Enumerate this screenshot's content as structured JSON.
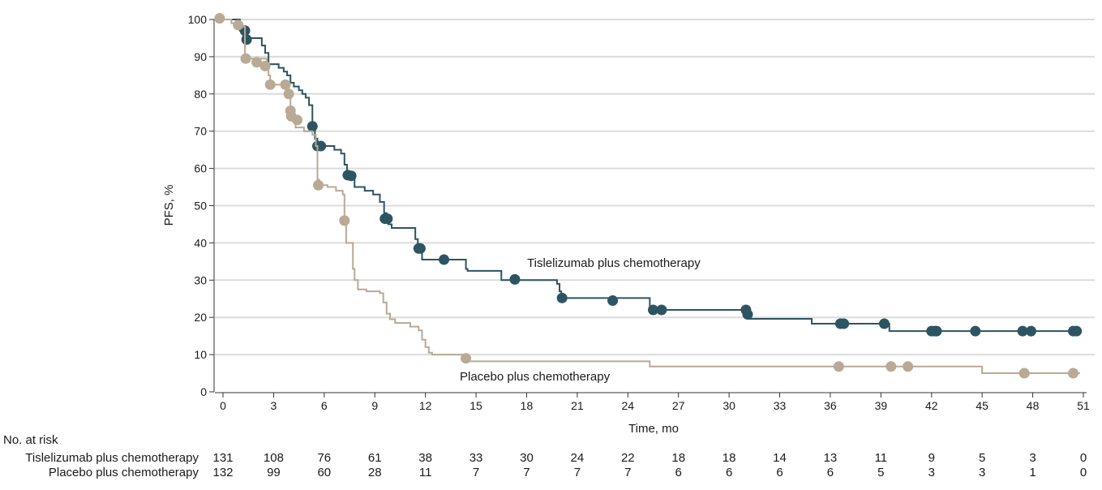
{
  "chart_data": {
    "type": "line",
    "title": "",
    "xlabel": "Time, mo",
    "ylabel": "PFS, %",
    "xlim": [
      0,
      51
    ],
    "ylim": [
      0,
      100
    ],
    "xticks": [
      0,
      3,
      6,
      9,
      12,
      15,
      18,
      21,
      24,
      27,
      30,
      33,
      36,
      39,
      42,
      45,
      48,
      51
    ],
    "yticks": [
      0,
      10,
      20,
      30,
      40,
      50,
      60,
      70,
      80,
      90,
      100
    ],
    "grid": "horizontal",
    "series": [
      {
        "name": "Tislelizumab plus chemotherapy",
        "color": "#2d5463",
        "steps": [
          [
            0,
            100
          ],
          [
            1.0,
            97
          ],
          [
            1.2,
            95
          ],
          [
            2.3,
            93
          ],
          [
            2.5,
            91
          ],
          [
            2.7,
            88
          ],
          [
            3.3,
            87
          ],
          [
            3.6,
            86
          ],
          [
            3.8,
            85
          ],
          [
            4.0,
            83
          ],
          [
            4.2,
            82
          ],
          [
            4.5,
            81
          ],
          [
            4.7,
            80
          ],
          [
            4.9,
            79
          ],
          [
            5.1,
            77
          ],
          [
            5.3,
            71
          ],
          [
            5.45,
            68
          ],
          [
            5.6,
            66
          ],
          [
            6.6,
            65
          ],
          [
            7.0,
            64
          ],
          [
            7.2,
            61
          ],
          [
            7.35,
            58
          ],
          [
            7.5,
            57
          ],
          [
            7.8,
            55
          ],
          [
            8.4,
            54
          ],
          [
            8.9,
            53
          ],
          [
            9.3,
            51
          ],
          [
            9.55,
            48
          ],
          [
            9.7,
            46.5
          ],
          [
            9.8,
            45
          ],
          [
            10.0,
            44
          ],
          [
            11.4,
            41
          ],
          [
            11.55,
            38.5
          ],
          [
            11.8,
            35.5
          ],
          [
            14.4,
            33
          ],
          [
            14.5,
            32.5
          ],
          [
            16.5,
            30
          ],
          [
            19.8,
            29
          ],
          [
            19.95,
            27
          ],
          [
            20.05,
            25.2
          ],
          [
            25.3,
            22
          ],
          [
            30.9,
            21.5
          ],
          [
            31.1,
            19.6
          ],
          [
            34.9,
            18.3
          ],
          [
            39.5,
            16.3
          ]
        ],
        "end": 50.8,
        "censored": [
          [
            1.3,
            97
          ],
          [
            1.4,
            94.6
          ],
          [
            5.3,
            71.3
          ],
          [
            5.6,
            66
          ],
          [
            5.8,
            66
          ],
          [
            7.4,
            58.2
          ],
          [
            7.6,
            58
          ],
          [
            9.6,
            46.5
          ],
          [
            9.75,
            46.5
          ],
          [
            11.6,
            38.5
          ],
          [
            11.7,
            38.5
          ],
          [
            13.1,
            35.5
          ],
          [
            17.3,
            30.2
          ],
          [
            20.1,
            25.2
          ],
          [
            23.1,
            24.5
          ],
          [
            25.5,
            22
          ],
          [
            26.0,
            22
          ],
          [
            31.0,
            22
          ],
          [
            31.1,
            20.8
          ],
          [
            36.6,
            18.3
          ],
          [
            36.8,
            18.3
          ],
          [
            39.2,
            18.3
          ],
          [
            42.0,
            16.3
          ],
          [
            42.2,
            16.3
          ],
          [
            42.3,
            16.3
          ],
          [
            44.6,
            16.3
          ],
          [
            47.4,
            16.3
          ],
          [
            47.9,
            16.3
          ],
          [
            50.4,
            16.3
          ],
          [
            50.6,
            16.3
          ]
        ]
      },
      {
        "name": "Placebo plus chemotherapy",
        "color": "#b8aa94",
        "steps": [
          [
            0,
            100
          ],
          [
            0.5,
            99
          ],
          [
            1.1,
            98
          ],
          [
            1.3,
            89.5
          ],
          [
            2.6,
            87
          ],
          [
            2.7,
            85
          ],
          [
            2.8,
            82.5
          ],
          [
            3.9,
            80
          ],
          [
            4.0,
            75.5
          ],
          [
            4.1,
            73
          ],
          [
            4.3,
            71
          ],
          [
            4.8,
            70
          ],
          [
            5.3,
            69
          ],
          [
            5.5,
            66
          ],
          [
            5.6,
            57
          ],
          [
            5.7,
            55.5
          ],
          [
            6.2,
            55
          ],
          [
            6.7,
            54
          ],
          [
            7.1,
            53
          ],
          [
            7.2,
            46
          ],
          [
            7.3,
            40
          ],
          [
            7.7,
            33
          ],
          [
            7.8,
            30
          ],
          [
            8.0,
            27.5
          ],
          [
            8.5,
            27
          ],
          [
            9.3,
            26.5
          ],
          [
            9.5,
            24
          ],
          [
            9.7,
            21
          ],
          [
            9.9,
            19.5
          ],
          [
            10.2,
            18.5
          ],
          [
            11.1,
            17.5
          ],
          [
            11.6,
            16.5
          ],
          [
            11.8,
            14
          ],
          [
            12.0,
            12
          ],
          [
            12.2,
            10.5
          ],
          [
            12.4,
            10
          ],
          [
            14.4,
            8.2
          ],
          [
            25.3,
            6.8
          ],
          [
            45.0,
            5
          ]
        ],
        "end": 50.8,
        "censored": [
          [
            -0.2,
            100.3
          ],
          [
            0.9,
            98.5
          ],
          [
            1.35,
            89.5
          ],
          [
            2.0,
            88.5
          ],
          [
            2.5,
            87.5
          ],
          [
            2.8,
            82.5
          ],
          [
            3.7,
            82.5
          ],
          [
            3.9,
            80
          ],
          [
            4.0,
            75.5
          ],
          [
            4.05,
            74
          ],
          [
            4.4,
            73
          ],
          [
            5.65,
            55.5
          ],
          [
            7.2,
            46
          ],
          [
            14.4,
            9
          ],
          [
            36.5,
            6.8
          ],
          [
            39.6,
            6.8
          ],
          [
            40.6,
            6.8
          ],
          [
            47.5,
            5
          ],
          [
            50.4,
            5
          ]
        ]
      }
    ],
    "annotations": {
      "tislelizumab_label": "Tislelizumab plus chemotherapy",
      "placebo_label": "Placebo plus chemotherapy"
    },
    "risk_table": {
      "title": "No. at risk",
      "rows": [
        {
          "label": "Tislelizumab plus chemotherapy",
          "values": [
            131,
            108,
            76,
            61,
            38,
            33,
            30,
            24,
            22,
            18,
            18,
            14,
            13,
            11,
            9,
            5,
            3,
            0
          ]
        },
        {
          "label": "Placebo plus chemotherapy",
          "values": [
            132,
            99,
            60,
            28,
            11,
            7,
            7,
            7,
            7,
            6,
            6,
            6,
            6,
            5,
            3,
            3,
            1,
            0
          ]
        }
      ]
    }
  }
}
